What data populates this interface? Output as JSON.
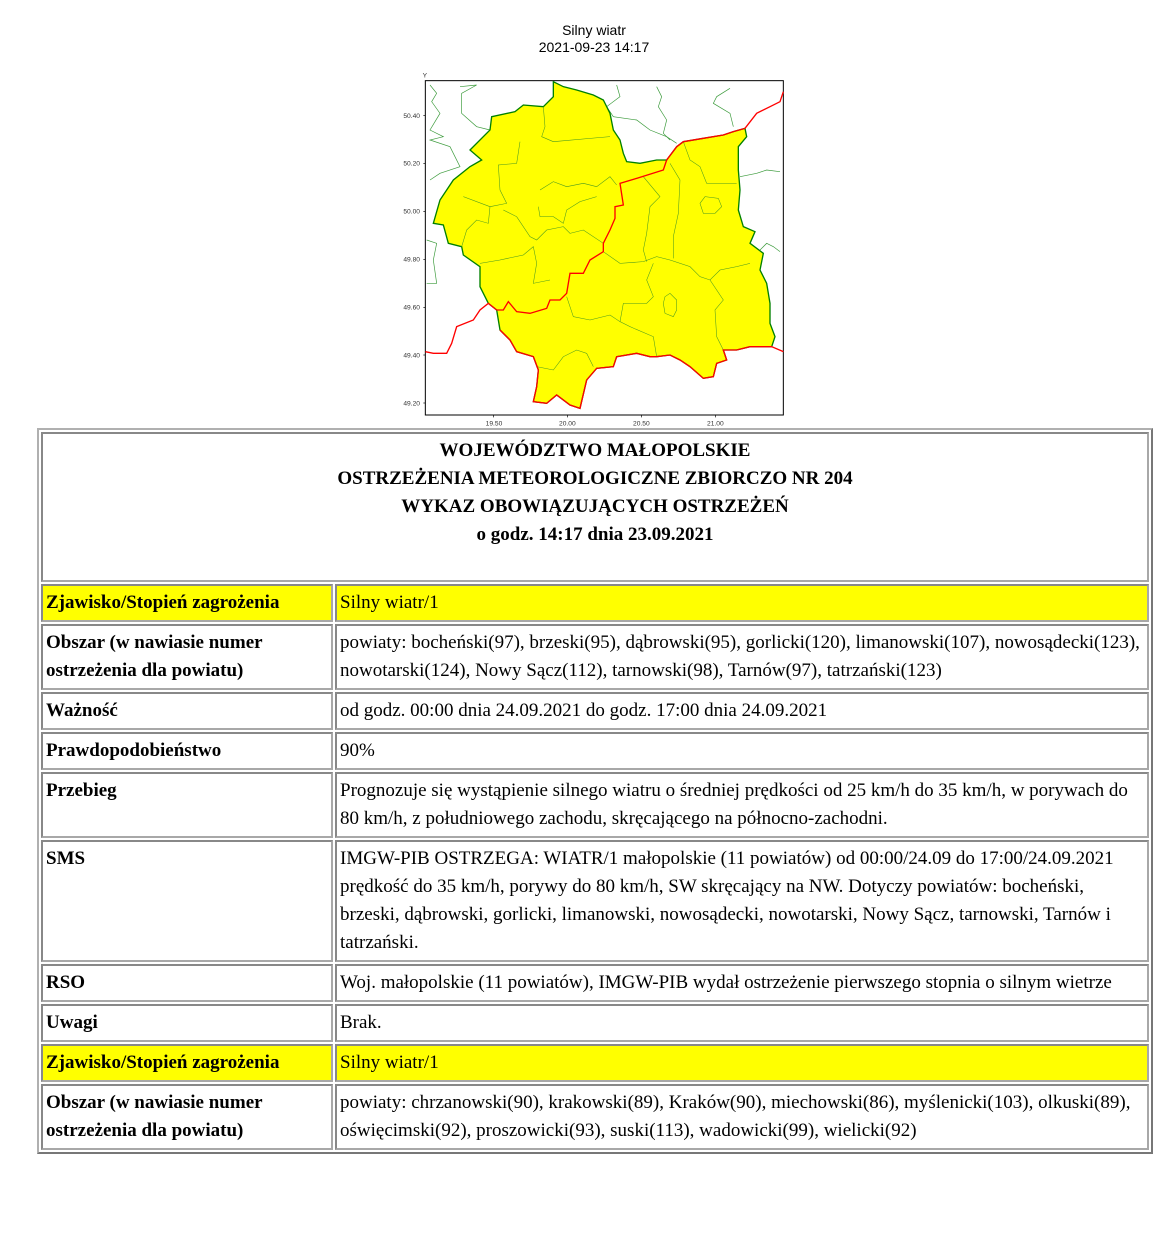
{
  "map": {
    "title": "Silny wiatr",
    "datetime": "2021-09-23 14:17",
    "axis_y_label": "Y",
    "y_ticks": [
      "50.40",
      "50.20",
      "50.00",
      "49.80",
      "49.60",
      "49.40",
      "49.20"
    ],
    "x_ticks": [
      "19.50",
      "20.00",
      "20.50",
      "21.00"
    ],
    "colors": {
      "warning_area": "#ffff00",
      "region_border": "#008000",
      "state_border": "#ff0000"
    }
  },
  "header": {
    "line1": "WOJEWÓDZTWO MAŁOPOLSKIE",
    "line2": "OSTRZEŻENIA METEOROLOGICZNE ZBIORCZO NR 204",
    "line3": "WYKAZ OBOWIĄZUJĄCYCH OSTRZEŻEŃ",
    "line4": "o godz. 14:17 dnia 23.09.2021"
  },
  "rows": [
    {
      "label": "Zjawisko/Stopień zagrożenia",
      "value": "Silny wiatr/1",
      "highlight": true
    },
    {
      "label": "Obszar (w nawiasie numer ostrzeżenia dla powiatu)",
      "value": "powiaty: bocheński(97), brzeski(95), dąbrowski(95), gorlicki(120), limanowski(107), nowosądecki(123), nowotarski(124), Nowy Sącz(112), tarnowski(98), Tarnów(97), tatrzański(123)"
    },
    {
      "label": "Ważność",
      "value": "od godz. 00:00 dnia 24.09.2021 do godz. 17:00 dnia 24.09.2021"
    },
    {
      "label": "Prawdopodobieństwo",
      "value": "90%"
    },
    {
      "label": "Przebieg",
      "value": "Prognozuje się wystąpienie silnego wiatru o średniej prędkości od 25 km/h do 35 km/h, w porywach do 80 km/h, z południowego zachodu, skręcającego na północno-zachodni."
    },
    {
      "label": "SMS",
      "value": "IMGW-PIB OSTRZEGA: WIATR/1 małopolskie (11 powiatów) od 00:00/24.09 do 17:00/24.09.2021 prędkość do 35 km/h, porywy do 80 km/h, SW skręcający na NW. Dotyczy powiatów: bocheński, brzeski, dąbrowski, gorlicki, limanowski, nowosądecki, nowotarski, Nowy Sącz, tarnowski, Tarnów i tatrzański."
    },
    {
      "label": "RSO",
      "value": "Woj. małopolskie (11 powiatów), IMGW-PIB wydał ostrzeżenie pierwszego stopnia o silnym wietrze"
    },
    {
      "label": "Uwagi",
      "value": "Brak."
    },
    {
      "label": "Zjawisko/Stopień zagrożenia",
      "value": "Silny wiatr/1",
      "highlight": true
    },
    {
      "label": "Obszar (w nawiasie numer ostrzeżenia dla powiatu)",
      "value": "powiaty: chrzanowski(90), krakowski(89), Kraków(90), miechowski(86), myślenicki(103), olkuski(89), oświęcimski(92), proszowicki(93), suski(113), wadowicki(99), wielicki(92)"
    }
  ]
}
